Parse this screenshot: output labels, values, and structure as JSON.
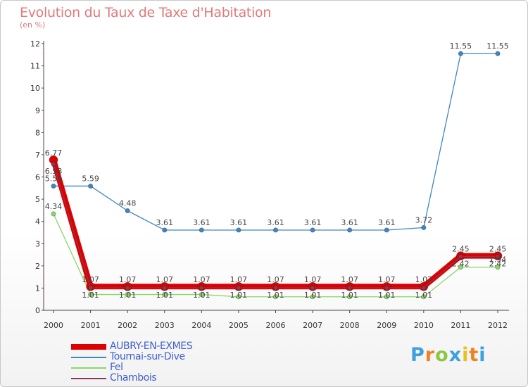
{
  "chart_data": {
    "type": "line",
    "title": "Evolution du Taux de Taxe d'Habitation",
    "subtitle": "(en %)",
    "xlabel": "",
    "ylabel": "",
    "ylim": [
      0,
      12
    ],
    "y_ticks": [
      "0",
      "1",
      "2",
      "3",
      "4",
      "5",
      "6",
      "7",
      "8",
      "9",
      "10",
      "11",
      "12"
    ],
    "categories": [
      "2000",
      "2001",
      "2002",
      "2003",
      "2004",
      "2005",
      "2006",
      "2007",
      "2008",
      "2009",
      "2010",
      "2011",
      "2012"
    ],
    "series": [
      {
        "name": "AUBRY-EN-EXMES",
        "color": "#dd0000",
        "values": [
          6.77,
          1.07,
          1.07,
          1.07,
          1.07,
          1.07,
          1.07,
          1.07,
          1.07,
          1.07,
          1.07,
          2.45,
          2.45
        ],
        "labels": [
          "6.77",
          "1.07",
          "1.07",
          "1.07",
          "1.07",
          "1.07",
          "1.07",
          "1.07",
          "1.07",
          "1.07",
          "1.07",
          "2.45",
          "2.45"
        ]
      },
      {
        "name": "Tournai-sur-Dive",
        "color": "#3f86c4",
        "values": [
          5.59,
          5.59,
          4.48,
          3.61,
          3.61,
          3.61,
          3.61,
          3.61,
          3.61,
          3.61,
          3.72,
          11.55,
          11.55
        ],
        "labels": [
          "5.59",
          "5.59",
          "4.48",
          "3.61",
          "3.61",
          "3.61",
          "3.61",
          "3.61",
          "3.61",
          "3.61",
          "3.72",
          "11.55",
          "11.55"
        ]
      },
      {
        "name": "Fel",
        "color": "#88d868",
        "values": [
          4.34,
          0.71,
          0.71,
          0.71,
          0.71,
          0.61,
          0.61,
          0.61,
          0.61,
          0.61,
          0.61,
          1.94,
          1.94
        ],
        "labels": [
          "4.34",
          "",
          "",
          "",
          "",
          "",
          "",
          "",
          "",
          "",
          "",
          "",
          "1.94"
        ]
      },
      {
        "name": "Chambois",
        "color": "#8b3a52",
        "values": [
          6.58,
          1.01,
          1.01,
          1.01,
          1.01,
          1.01,
          1.01,
          1.01,
          1.01,
          1.01,
          1.01,
          2.42,
          2.42
        ],
        "labels": [
          "6.58",
          "1.01",
          "1.01",
          "1.01",
          "1.01",
          "1.01",
          "1.01",
          "1.01",
          "1.01",
          "1.01",
          "1.01",
          "2.42",
          "2.42"
        ]
      }
    ],
    "legend": "bottom-left"
  },
  "branding": {
    "logo_letters": [
      "P",
      "r",
      "o",
      "x",
      "i",
      "t",
      "i"
    ],
    "logo_colors": [
      "#3da0e0",
      "#f08020",
      "#8dc63f",
      "#3da0e0",
      "#e8c020",
      "#f08020",
      "#3da0e0"
    ]
  }
}
